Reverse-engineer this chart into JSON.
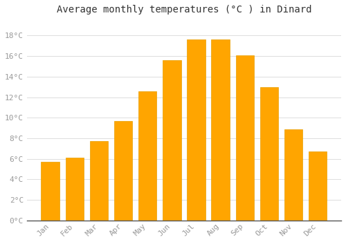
{
  "title": "Average monthly temperatures (°C ) in Dinard",
  "months": [
    "Jan",
    "Feb",
    "Mar",
    "Apr",
    "May",
    "Jun",
    "Jul",
    "Aug",
    "Sep",
    "Oct",
    "Nov",
    "Dec"
  ],
  "values": [
    5.7,
    6.1,
    7.7,
    9.7,
    12.6,
    15.6,
    17.6,
    17.6,
    16.1,
    13.0,
    8.9,
    6.7
  ],
  "bar_color": "#FFA500",
  "bar_edge_color": "#E8A000",
  "background_color": "#FFFFFF",
  "grid_color": "#DDDDDD",
  "text_color": "#999999",
  "title_color": "#333333",
  "axis_color": "#333333",
  "ylim": [
    0,
    19.5
  ],
  "yticks": [
    0,
    2,
    4,
    6,
    8,
    10,
    12,
    14,
    16,
    18
  ],
  "title_fontsize": 10,
  "tick_fontsize": 8,
  "bar_width": 0.75
}
